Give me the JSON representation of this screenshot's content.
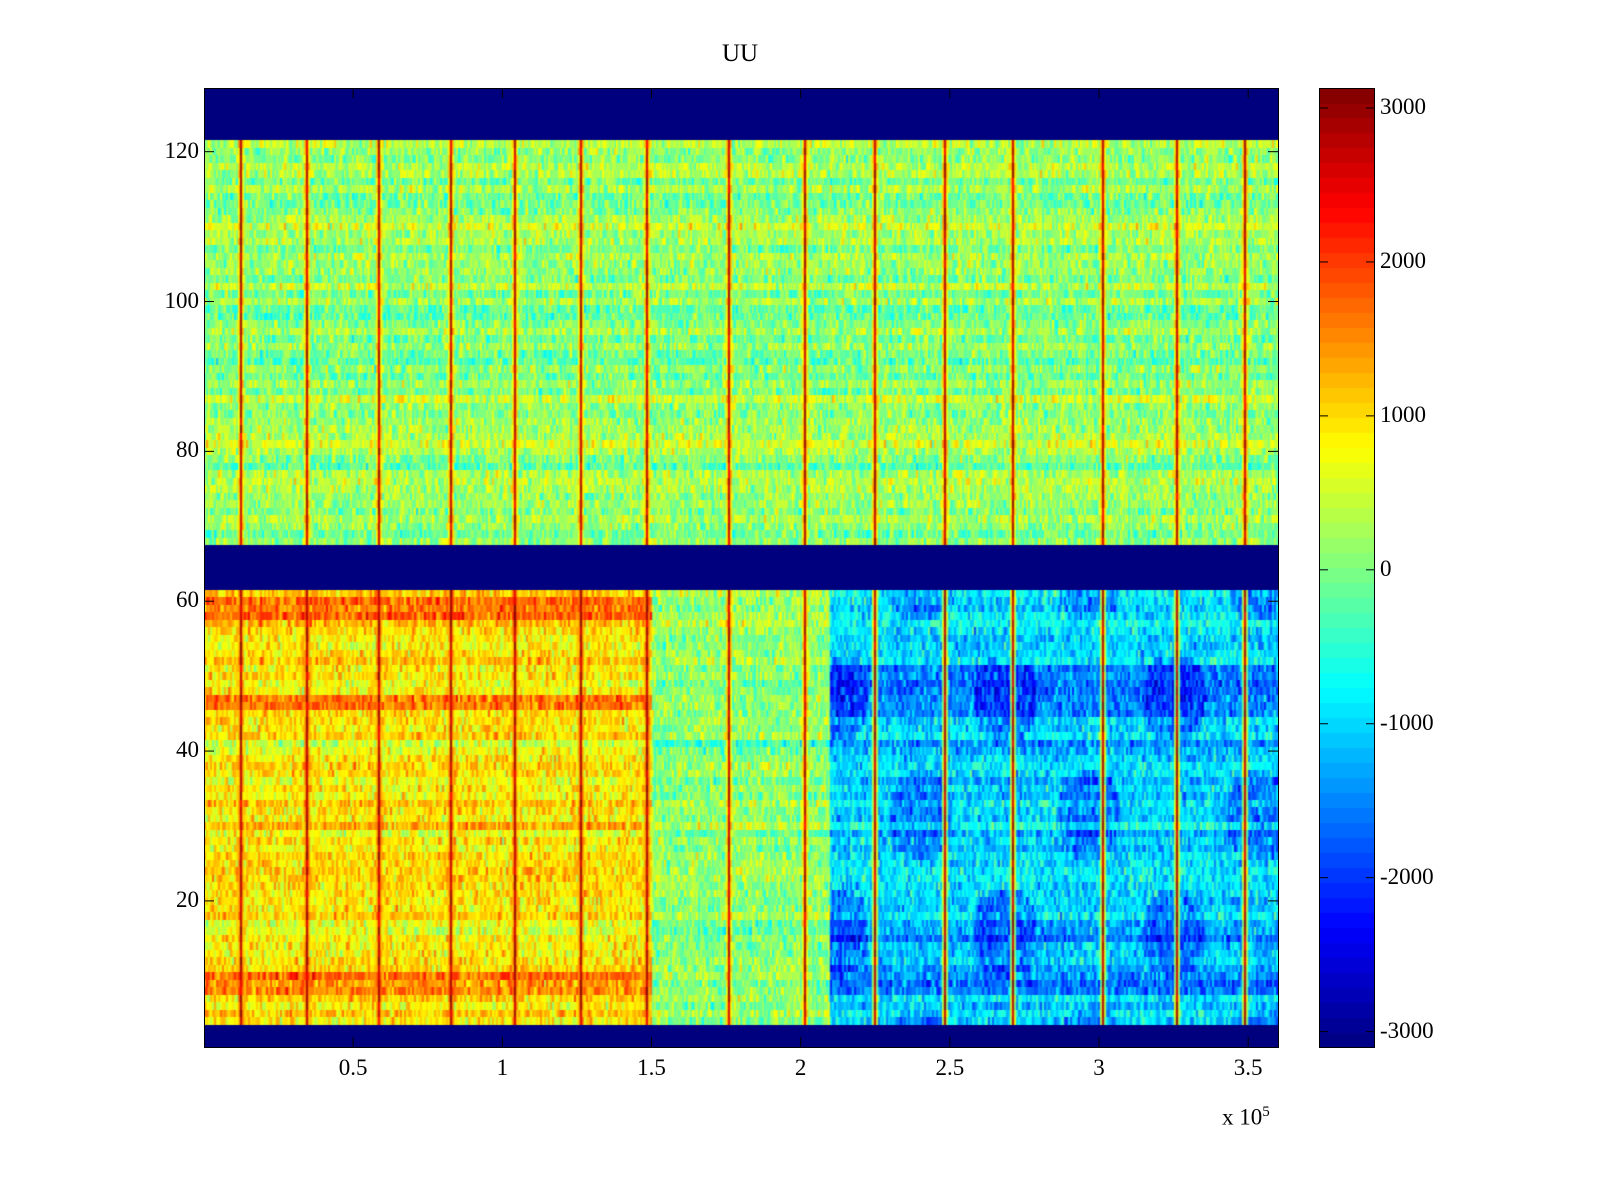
{
  "chart_data": {
    "type": "heatmap",
    "title": "UU",
    "xlabel": "",
    "ylabel": "",
    "x_multiplier_label": "x 10",
    "x_multiplier_exponent": "5",
    "xlim": [
      0,
      360000
    ],
    "ylim": [
      0.5,
      128.5
    ],
    "clim": [
      -3100,
      3130
    ],
    "colormap": "jet",
    "x_ticks": [
      50000,
      100000,
      150000,
      200000,
      250000,
      300000,
      350000
    ],
    "x_tick_labels": [
      "0.5",
      "1",
      "1.5",
      "2",
      "2.5",
      "3",
      "3.5"
    ],
    "y_ticks": [
      20,
      40,
      60,
      80,
      100,
      120
    ],
    "y_tick_labels": [
      "20",
      "40",
      "60",
      "80",
      "100",
      "120"
    ],
    "colorbar_ticks": [
      -3000,
      -2000,
      -1000,
      0,
      1000,
      2000,
      3000
    ],
    "colorbar_tick_labels": [
      "-3000",
      "-2000",
      "-1000",
      "0",
      "1000",
      "2000",
      "3000"
    ],
    "rows": 128,
    "empty_row_ranges": [
      [
        1,
        3
      ],
      [
        62,
        67
      ],
      [
        122,
        128
      ]
    ],
    "spike_x_positions": [
      12000,
      34300,
      58400,
      82200,
      104000,
      126200,
      148300,
      175800,
      201000,
      224800,
      248000,
      271100,
      300700,
      325500,
      348600
    ],
    "spike_value": 2800,
    "regions": [
      {
        "rows": [
          68,
          121
        ],
        "x_range": [
          0,
          360000
        ],
        "mean": 150,
        "noise": 600
      },
      {
        "rows": [
          4,
          61
        ],
        "x_range": [
          0,
          150000
        ],
        "mean": 900,
        "noise": 600
      },
      {
        "rows": [
          4,
          61
        ],
        "x_range": [
          150000,
          210000
        ],
        "mean": 100,
        "noise": 600
      },
      {
        "rows": [
          4,
          61
        ],
        "x_range": [
          210000,
          360000
        ],
        "mean": -1000,
        "noise": 650
      }
    ],
    "hot_rows_left": [
      8,
      9,
      10,
      58,
      59,
      60,
      46,
      47
    ],
    "cold_rows_right": [
      8,
      9,
      10,
      11,
      15,
      45,
      46,
      47,
      48,
      49,
      50,
      51
    ]
  }
}
